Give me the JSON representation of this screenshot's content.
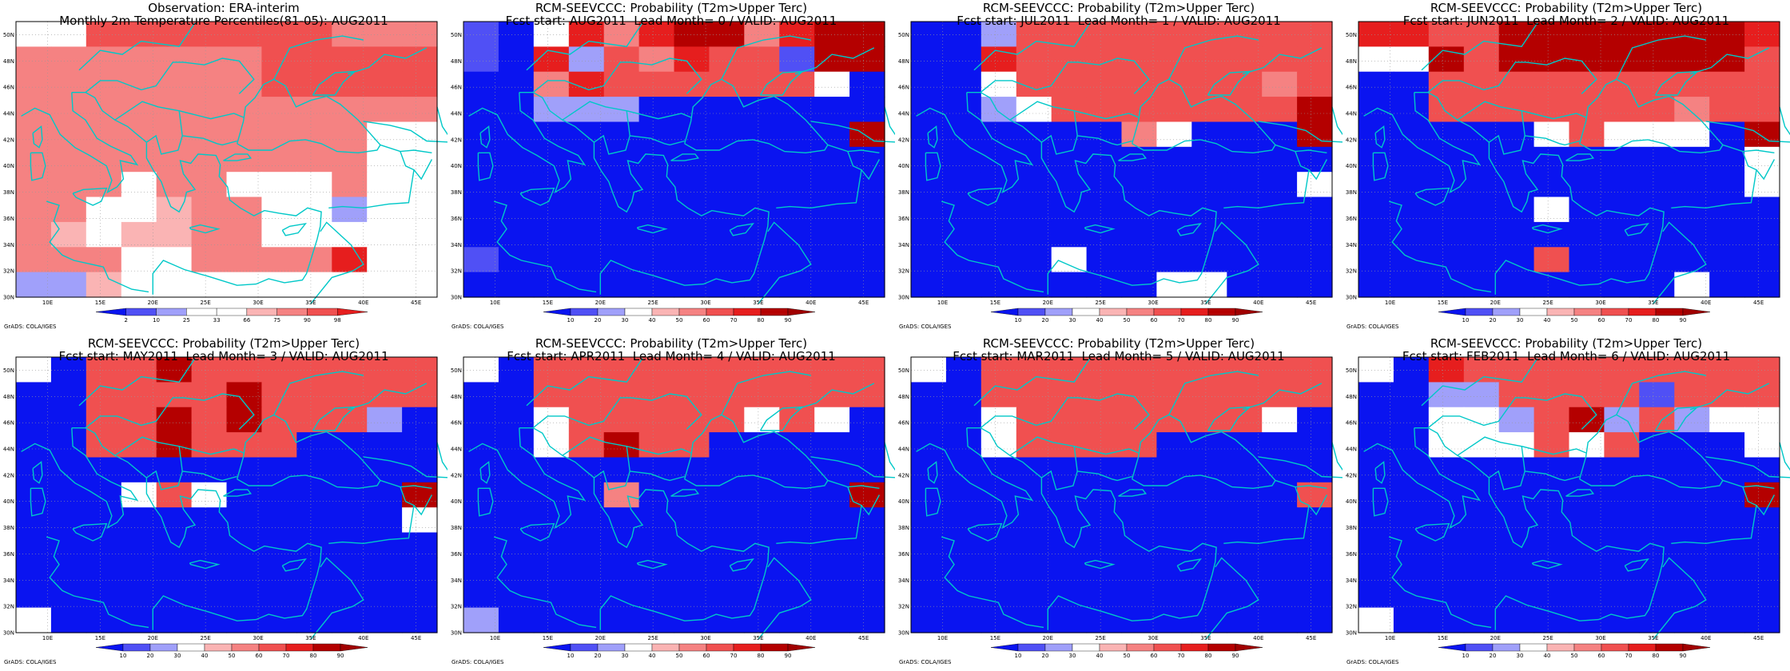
{
  "colors": {
    "deep_blue": "#0a14f0",
    "mid_blue": "#5050f5",
    "light_blue": "#a0a0fa",
    "white": "#ffffff",
    "light_red": "#fab4b4",
    "salmon": "#f58282",
    "red": "#f05050",
    "bright_red": "#e61e1e",
    "dark_red": "#b40000",
    "very_dark_red": "#a00000",
    "coast": "#00c8c8",
    "grid": "#999999"
  },
  "axes": {
    "lat_labels": [
      "30N",
      "32N",
      "34N",
      "36N",
      "38N",
      "40N",
      "42N",
      "44N",
      "46N",
      "48N",
      "50N"
    ],
    "lon_labels": [
      "10E",
      "15E",
      "20E",
      "25E",
      "30E",
      "35E",
      "40E",
      "45E"
    ],
    "lat_range": [
      30,
      51
    ],
    "lon_range": [
      7,
      47
    ]
  },
  "observation_colorbar": {
    "ticks": [
      "2",
      "10",
      "25",
      "33",
      "66",
      "75",
      "90",
      "98"
    ]
  },
  "probability_colorbar": {
    "ticks": [
      "10",
      "20",
      "30",
      "40",
      "50",
      "60",
      "70",
      "80",
      "90"
    ]
  },
  "panels": [
    {
      "id": "obs",
      "title1": "Observation: ERA-interim",
      "title2": "Monthly 2m Temperature Percentiles(81-05): AUG2011",
      "colorbar": "obs",
      "credit": "GrADS: COLA/IGES",
      "rows": [
        "WWRRRRRRRCCC",
        "CCCCCCCRRRRR",
        "CCCCCCCRRRRR",
        "CCCCCCCCCCCC",
        "CCCCCCCCCCWW",
        "CCCCCCCCCCWW",
        "CCCWCCWWWCWW",
        "CCWWLCCWWBWW",
        "CLWLLCCWWWWW",
        "CCCWWCCCCSWW",
        "BBLWWWWWWWWW"
      ]
    },
    {
      "id": "lead0",
      "title1": "RCM-SEEVCCC: Probability (T2m>Upper Terc)",
      "title2": "Fcst start: AUG2011  Lead Month= 0 / VALID: AUG2011",
      "colorbar": "prob",
      "credit": "GrADS: COLA/IGES",
      "rows": [
        "MBWFSFDDSFDD",
        "MBFLRSFRRMDD",
        "BBCFRRRRRRWB",
        "BBLLLBBBBBBB",
        "BBBBBBBBBBBD",
        "BBBBBBBBBBBB",
        "BBBBBBBBBBBB",
        "BBBBBBBBBBBB",
        "BBBBBBBBBBBB",
        "MBBBBBBBBBBB",
        "BBBBBBBBBBBB"
      ]
    },
    {
      "id": "lead1",
      "title1": "RCM-SEEVCCC: Probability (T2m>Upper Terc)",
      "title2": "Fcst start: JUL2011  Lead Month= 1 / VALID: AUG2011",
      "colorbar": "prob",
      "credit": "GrADS: COLA/IGES",
      "rows": [
        "BBLRRRRRRRRR",
        "BBFRRRRRRRRR",
        "BBWRRRRRRRCR",
        "BBLWRRRRRRRD",
        "BBBBBBCWBBBD",
        "BBBBBBBBBBBB",
        "BBBBBBBBBBBW",
        "BBBBBBBBBBBB",
        "BBBBBBBBBBBB",
        "BBBBWBBBBBBB",
        "BBBBBBBWWBBB"
      ]
    },
    {
      "id": "lead2",
      "title1": "RCM-SEEVCCC: Probability (T2m>Upper Terc)",
      "title2": "Fcst start: JUN2011  Lead Month= 2 / VALID: AUG2011",
      "colorbar": "prob",
      "credit": "GrADS: COLA/IGES",
      "rows": [
        "FFRRDDDDDDDF",
        "WWDRDDDDDDDR",
        "BBRRRRRRRRRR",
        "BBRRRRRRRCRR",
        "BBBBBWRWWWBD",
        "BBBBBBBBBBBW",
        "BBBBBBBBBBBW",
        "BBBBBWBBBBBB",
        "BBBBBBBBBBBB",
        "BBBBBRBBBBBB",
        "BBBBBBBBBWBB"
      ]
    },
    {
      "id": "lead3",
      "title1": "RCM-SEEVCCC: Probability (T2m>Upper Terc)",
      "title2": "Fcst start: MAY2011  Lead Month= 3 / VALID: AUG2011",
      "colorbar": "prob",
      "credit": "GrADS: COLA/IGES",
      "rows": [
        "WBRRDRRRRRRR",
        "BBRRRRDRRRRR",
        "BBRRDRDRRRLB",
        "BBRRDRRRBBBB",
        "BBBBBBBBBBBB",
        "BBBWRWBBBBBD",
        "BBBBBBBBBBBW",
        "BBBBBBBBBBBB",
        "BBBBBBBBBBBB",
        "BBBBBBBBBBBB",
        "WBBBBBBBBBBB"
      ]
    },
    {
      "id": "lead4",
      "title1": "RCM-SEEVCCC: Probability (T2m>Upper Terc)",
      "title2": "Fcst start: APR2011  Lead Month= 4 / VALID: AUG2011",
      "colorbar": "prob",
      "credit": "GrADS: COLA/IGES",
      "rows": [
        "WBRRRRRRRRRR",
        "BBRRRRRRRRRR",
        "BBWRRRRRWRWB",
        "BBWRDRRBBBBB",
        "BBBBBBBBBBBB",
        "BBBBCBBBBBBD",
        "BBBBBBBBBBBB",
        "BBBBBBBBBBBB",
        "BBBBBBBBBBBB",
        "BBBBBBBBBBBB",
        "LBBBBBBBBBBB"
      ]
    },
    {
      "id": "lead5",
      "title1": "RCM-SEEVCCC: Probability (T2m>Upper Terc)",
      "title2": "Fcst start: MAR2011  Lead Month= 5 / VALID: AUG2011",
      "colorbar": "prob",
      "credit": "GrADS: COLA/IGES",
      "rows": [
        "WBRRRRRRRRRR",
        "BBRRRRRRRRRR",
        "BBWRRRRRRRWB",
        "BBWRRRRBBBBB",
        "BBBBBBBBBBBB",
        "BBBBBBBBBBBR",
        "BBBBBBBBBBBB",
        "BBBBBBBBBBBB",
        "BBBBBBBBBBBB",
        "BBBBBBBBBBBB",
        "BBBBBBBBBBBB"
      ]
    },
    {
      "id": "lead6",
      "title1": "RCM-SEEVCCC: Probability (T2m>Upper Terc)",
      "title2": "Fcst start: FEB2011  Lead Month= 6 / VALID: AUG2011",
      "colorbar": "prob",
      "credit": "GrADS: COLA/IGES",
      "rows": [
        "WBFRRRRRRRRR",
        "BBLLRRRRMRRR",
        "BBWWLRDLRLWW",
        "BBWWWRWRBBBW",
        "BBBBBBBBBBBB",
        "BBBBBBBBBBBD",
        "BBBBBBBBBBBB",
        "BBBBBBBBBBBB",
        "BBBBBBBBBBBB",
        "BBBBBBBBBBBB",
        "WBBBBBBBBBBB"
      ]
    }
  ]
}
